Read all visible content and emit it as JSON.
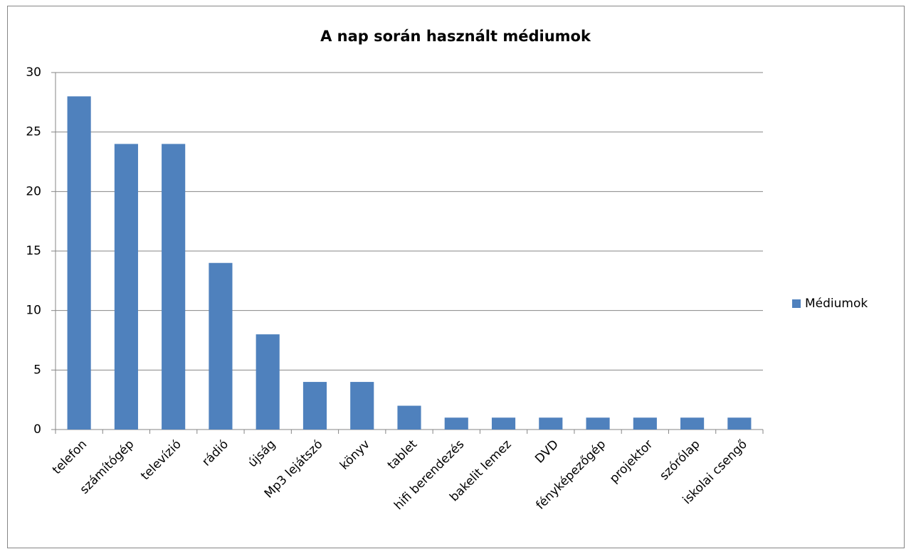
{
  "chart_data": {
    "type": "bar",
    "title": "A nap során használt médiumok",
    "categories": [
      "telefon",
      "számítógép",
      "televízió",
      "rádió",
      "újság",
      "Mp3 lejátszó",
      "könyv",
      "tablet",
      "hifi berendezés",
      "bakelit lemez",
      "DVD",
      "fényképezőgép",
      "projektor",
      "szórólap",
      "iskolai csengő"
    ],
    "series": [
      {
        "name": "Médiumok",
        "color": "#4f81bd",
        "values": [
          28,
          24,
          24,
          14,
          8,
          4,
          4,
          2,
          1,
          1,
          1,
          1,
          1,
          1,
          1
        ]
      }
    ],
    "ylim": [
      0,
      30
    ],
    "yticks": [
      0,
      5,
      10,
      15,
      20,
      25,
      30
    ],
    "grid": true,
    "legend": "right"
  }
}
